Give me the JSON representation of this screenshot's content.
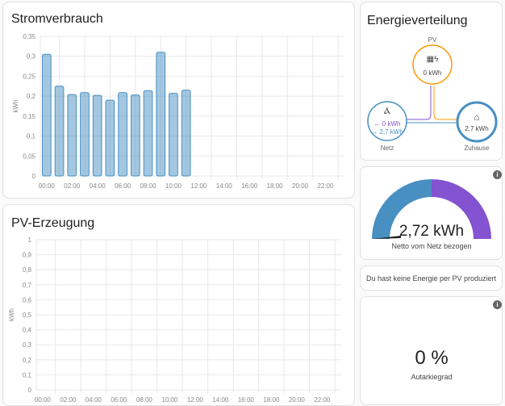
{
  "consumption": {
    "title": "Stromverbrauch",
    "ylabel": "kWh"
  },
  "production": {
    "title": "PV-Erzeugung",
    "ylabel": "kWh"
  },
  "distribution": {
    "title": "Energieverteilung",
    "pv_label": "PV",
    "pv_value": "0 kWh",
    "grid_label": "Netz",
    "grid_in": "← 0 kWh",
    "grid_out": "→ 2,7 kWh",
    "home_label": "Zuhause",
    "home_value": "2,7 kWh",
    "colors": {
      "solar": "#ff9800",
      "grid": "#488fc2",
      "return": "#8353d1",
      "home": "#488fc2"
    }
  },
  "grid_gauge": {
    "value": "2,72 kWh",
    "label": "Netto vom Netz bezogen",
    "info_icon": "info-icon"
  },
  "solar_notice": "Du hast keine Energie per PV produziert",
  "autarky_gauge": {
    "value": "0 %",
    "label": "Autarkiegrad",
    "fraction": 0,
    "info_icon": "info-icon"
  },
  "chart_data": [
    {
      "type": "bar",
      "title": "Stromverbrauch",
      "ylabel": "kWh",
      "ylim": [
        0,
        0.35
      ],
      "yticks": [
        "0",
        "0,05",
        "0,1",
        "0,15",
        "0,2",
        "0,25",
        "0,3",
        "0,35"
      ],
      "xticks": [
        "00:00",
        "02:00",
        "04:00",
        "06:00",
        "08:00",
        "10:00",
        "12:00",
        "14:00",
        "16:00",
        "18:00",
        "20:00",
        "22:00"
      ],
      "categories": [
        "00:00",
        "01:00",
        "02:00",
        "03:00",
        "04:00",
        "05:00",
        "06:00",
        "07:00",
        "08:00",
        "09:00",
        "10:00",
        "11:00"
      ],
      "values": [
        0.305,
        0.225,
        0.204,
        0.209,
        0.202,
        0.19,
        0.209,
        0.203,
        0.214,
        0.31,
        0.207,
        0.215
      ],
      "color": "#488fc2",
      "grid": true
    },
    {
      "type": "bar",
      "title": "PV-Erzeugung",
      "ylabel": "kWh",
      "ylim": [
        0,
        1
      ],
      "yticks": [
        "0",
        "0,1",
        "0,2",
        "0,3",
        "0,4",
        "0,5",
        "0,6",
        "0,7",
        "0,8",
        "0,9",
        "1"
      ],
      "xticks": [
        "00:00",
        "02:00",
        "04:00",
        "06:00",
        "08:00",
        "10:00",
        "12:00",
        "14:00",
        "16:00",
        "18:00",
        "20:00",
        "22:00"
      ],
      "values": [],
      "grid": true
    }
  ]
}
